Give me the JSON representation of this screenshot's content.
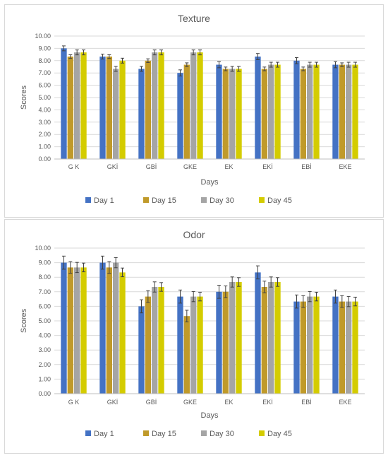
{
  "chart_data": [
    {
      "type": "bar",
      "title": "Texture",
      "xlabel": "Days",
      "ylabel": "Scores",
      "ylim": [
        0,
        10
      ],
      "y_ticks": [
        "0.00",
        "1.00",
        "2.00",
        "3.00",
        "4.00",
        "5.00",
        "6.00",
        "7.00",
        "8.00",
        "9.00",
        "10.00"
      ],
      "grid": true,
      "legend_position": "bottom",
      "categories": [
        "G K",
        "GKİ",
        "GBİ",
        "GKE",
        "EK",
        "EKİ",
        "EBİ",
        "EKE"
      ],
      "series": [
        {
          "name": "Day 1",
          "color": "#4472c4",
          "values": [
            9.0,
            8.33,
            7.33,
            7.0,
            7.67,
            8.33,
            8.0,
            7.67
          ],
          "errors": [
            0.2,
            0.2,
            0.2,
            0.25,
            0.25,
            0.25,
            0.25,
            0.25
          ]
        },
        {
          "name": "Day 15",
          "color": "#c09a2a",
          "values": [
            8.33,
            8.33,
            8.0,
            7.67,
            7.33,
            7.33,
            7.33,
            7.67
          ],
          "errors": [
            0.15,
            0.15,
            0.15,
            0.15,
            0.15,
            0.15,
            0.15,
            0.15
          ]
        },
        {
          "name": "Day 30",
          "color": "#a5a5a5",
          "values": [
            8.67,
            7.33,
            8.67,
            8.67,
            7.33,
            7.67,
            7.67,
            7.67
          ],
          "errors": [
            0.2,
            0.2,
            0.2,
            0.2,
            0.2,
            0.2,
            0.2,
            0.2
          ]
        },
        {
          "name": "Day 45",
          "color": "#d4cc00",
          "values": [
            8.67,
            8.0,
            8.67,
            8.67,
            7.33,
            7.67,
            7.67,
            7.67
          ],
          "errors": [
            0.2,
            0.2,
            0.2,
            0.2,
            0.2,
            0.2,
            0.2,
            0.2
          ]
        }
      ]
    },
    {
      "type": "bar",
      "title": "Odor",
      "xlabel": "Days",
      "ylabel": "Scores",
      "ylim": [
        0,
        10
      ],
      "y_ticks": [
        "0.00",
        "1.00",
        "2.00",
        "3.00",
        "4.00",
        "5.00",
        "6.00",
        "7.00",
        "8.00",
        "9.00",
        "10.00"
      ],
      "grid": true,
      "legend_position": "bottom",
      "categories": [
        "G K",
        "GKİ",
        "GBİ",
        "GKE",
        "EK",
        "EKİ",
        "EBİ",
        "EKE"
      ],
      "series": [
        {
          "name": "Day 1",
          "color": "#4472c4",
          "values": [
            9.0,
            9.0,
            6.0,
            6.67,
            7.0,
            8.33,
            6.33,
            6.67
          ],
          "errors": [
            0.45,
            0.45,
            0.45,
            0.45,
            0.45,
            0.45,
            0.45,
            0.45
          ]
        },
        {
          "name": "Day 15",
          "color": "#c09a2a",
          "values": [
            8.67,
            8.67,
            6.67,
            5.33,
            7.0,
            7.33,
            6.33,
            6.33
          ],
          "errors": [
            0.4,
            0.4,
            0.4,
            0.4,
            0.4,
            0.4,
            0.4,
            0.4
          ]
        },
        {
          "name": "Day 30",
          "color": "#a5a5a5",
          "values": [
            8.67,
            9.0,
            7.33,
            6.67,
            7.67,
            7.67,
            6.67,
            6.33
          ],
          "errors": [
            0.35,
            0.35,
            0.35,
            0.35,
            0.35,
            0.35,
            0.35,
            0.35
          ]
        },
        {
          "name": "Day 45",
          "color": "#d4cc00",
          "values": [
            8.67,
            8.33,
            7.33,
            6.67,
            7.67,
            7.67,
            6.67,
            6.33
          ],
          "errors": [
            0.3,
            0.3,
            0.3,
            0.3,
            0.3,
            0.3,
            0.3,
            0.3
          ]
        }
      ]
    }
  ]
}
